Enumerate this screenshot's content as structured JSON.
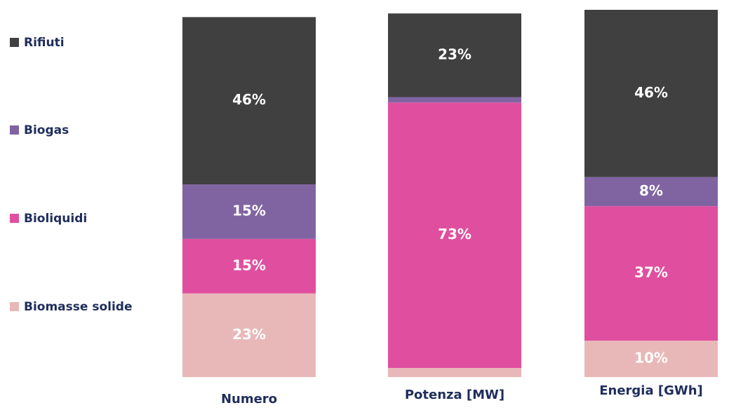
{
  "chart_data": {
    "type": "stacked_bar",
    "categories": [
      "Numero",
      "Potenza [MW]",
      "Energia [GWh]"
    ],
    "series": [
      {
        "name": "Biomasse solide",
        "color": "#e8b8b8",
        "values": [
          23,
          2.5,
          10
        ],
        "value_labels": [
          "23%",
          null,
          "10%"
        ]
      },
      {
        "name": "Bioliquidi",
        "color": "#e04f9f",
        "values": [
          15,
          73,
          37
        ],
        "value_labels": [
          "15%",
          "73%",
          "37%"
        ]
      },
      {
        "name": "Biogas",
        "color": "#8064a2",
        "values": [
          15,
          1.5,
          8
        ],
        "value_labels": [
          "15%",
          null,
          "8%"
        ]
      },
      {
        "name": "Rifiuti",
        "color": "#404040",
        "values": [
          46,
          23,
          46
        ],
        "value_labels": [
          "46%",
          "23%",
          "46%"
        ]
      }
    ]
  }
}
